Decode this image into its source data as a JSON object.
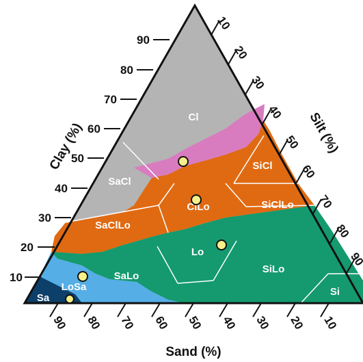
{
  "diagram": {
    "axes": {
      "clay": {
        "title": "Clay (%)",
        "ticks": [
          "10",
          "20",
          "30",
          "40",
          "50",
          "60",
          "70",
          "80",
          "90"
        ]
      },
      "silt": {
        "title": "Silt (%)",
        "ticks": [
          "10",
          "20",
          "30",
          "40",
          "50",
          "60",
          "70",
          "80",
          "90"
        ]
      },
      "sand": {
        "title": "Sand (%)",
        "ticks": [
          "90",
          "80",
          "70",
          "60",
          "50",
          "40",
          "30",
          "20",
          "10"
        ]
      }
    },
    "zones": [
      {
        "id": "Cl",
        "label": "Cl",
        "color": "#b4b4b4"
      },
      {
        "id": "SiCl",
        "label": "SiCl",
        "color": "#e06a12"
      },
      {
        "id": "SaCl",
        "label": "SaCl",
        "color": "#b4b4b4"
      },
      {
        "id": "ClLo",
        "label": "ClLo",
        "color": "#e06a12"
      },
      {
        "id": "SiClLo",
        "label": "SiClLo",
        "color": "#e06a12"
      },
      {
        "id": "SaClLo",
        "label": "SaClLo",
        "color": "#e06a12"
      },
      {
        "id": "Lo",
        "label": "Lo",
        "color": "#149a6e"
      },
      {
        "id": "SaLo",
        "label": "SaLo",
        "color": "#149a6e"
      },
      {
        "id": "SiLo",
        "label": "SiLo",
        "color": "#149a6e"
      },
      {
        "id": "LoSa",
        "label": "LoSa",
        "color": "#55aee6"
      },
      {
        "id": "Sa",
        "label": "Sa",
        "color": "#0c3f6a"
      },
      {
        "id": "Si",
        "label": "Si",
        "color": "#149a6e"
      }
    ],
    "accent_band_color": "#d97cbf",
    "point_color": "#f6f08a"
  }
}
